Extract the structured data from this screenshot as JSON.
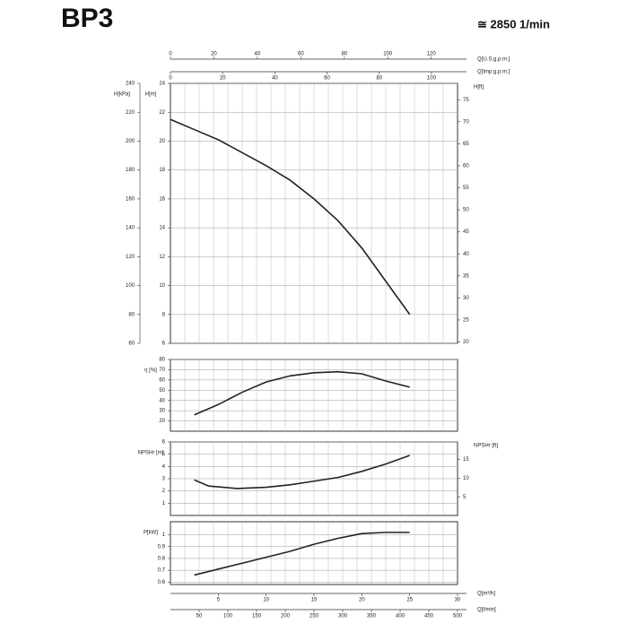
{
  "title": "BP3",
  "speed": "≅ 2850 1/min",
  "chart_data": [
    {
      "type": "line",
      "color": "#222",
      "grid": true,
      "xlim": [
        0,
        30
      ],
      "x": [
        0,
        2.5,
        5,
        7.5,
        10,
        12.5,
        15,
        17.5,
        20,
        22.5,
        25
      ],
      "values": [
        21.5,
        20.8,
        20.1,
        19.2,
        18.3,
        17.3,
        16.0,
        14.5,
        12.6,
        10.3,
        8.0
      ],
      "axes": [
        {
          "label": "H[m]",
          "position": "left",
          "lim": [
            6,
            24
          ],
          "ticks": [
            6,
            8,
            10,
            12,
            14,
            16,
            18,
            20,
            22,
            24
          ]
        },
        {
          "label": "H[kPa]",
          "position": "left-outer",
          "lim": [
            60,
            240
          ],
          "ticks": [
            60,
            80,
            100,
            120,
            140,
            160,
            180,
            200,
            220,
            240
          ]
        },
        {
          "label": "H[ft]",
          "position": "right",
          "lim": [
            19.7,
            78.7
          ],
          "ticks": [
            20,
            25,
            30,
            35,
            40,
            45,
            50,
            55,
            60,
            65,
            70,
            75
          ]
        }
      ],
      "top_axes": [
        {
          "label": "Q[U.S.g.p.m.]",
          "lim": [
            0,
            132.1
          ],
          "ticks": [
            0,
            20,
            40,
            60,
            80,
            100,
            120
          ]
        },
        {
          "label": "Q[Imp.g.p.m.]",
          "lim": [
            0,
            110
          ],
          "ticks": [
            0,
            20,
            40,
            60,
            80,
            100
          ]
        }
      ]
    },
    {
      "type": "line",
      "color": "#222",
      "grid": true,
      "xlim": [
        0,
        30
      ],
      "x": [
        2.5,
        5,
        7.5,
        10,
        12.5,
        15,
        17.5,
        20,
        22.5,
        25
      ],
      "values": [
        26,
        36,
        48,
        58,
        64,
        67,
        68,
        66,
        59,
        53
      ],
      "axes": [
        {
          "label": "η [%]",
          "position": "left",
          "lim": [
            10,
            80
          ],
          "ticks": [
            20,
            30,
            40,
            50,
            60,
            70,
            80
          ]
        }
      ]
    },
    {
      "type": "line",
      "color": "#222",
      "grid": true,
      "xlim": [
        0,
        30
      ],
      "x": [
        2.5,
        4,
        7,
        10,
        12.5,
        15,
        17.5,
        20,
        22.5,
        25
      ],
      "values": [
        2.9,
        2.4,
        2.2,
        2.3,
        2.5,
        2.8,
        3.1,
        3.6,
        4.2,
        4.9
      ],
      "axes": [
        {
          "label": "NPSHr [m]",
          "position": "left",
          "lim": [
            0,
            6
          ],
          "ticks": [
            1,
            2,
            3,
            4,
            5,
            6
          ]
        },
        {
          "label": "NPSHr [ft]",
          "position": "right",
          "lim": [
            0,
            19.7
          ],
          "ticks": [
            5,
            10,
            15
          ]
        }
      ]
    },
    {
      "type": "line",
      "color": "#222",
      "grid": true,
      "xlim": [
        0,
        30
      ],
      "x": [
        2.5,
        5,
        7.5,
        10,
        12.5,
        15,
        17.5,
        20,
        22.5,
        25
      ],
      "values": [
        0.66,
        0.71,
        0.76,
        0.81,
        0.86,
        0.92,
        0.97,
        1.01,
        1.02,
        1.02
      ],
      "axes": [
        {
          "label": "P[kW]",
          "position": "left",
          "lim": [
            0.58,
            1.11
          ],
          "ticks": [
            0.6,
            0.7,
            0.8,
            0.9,
            1
          ]
        }
      ],
      "bottom_axes": [
        {
          "label": "Q[m³/h]",
          "lim": [
            0,
            30
          ],
          "ticks": [
            5,
            10,
            15,
            20,
            25,
            30
          ]
        },
        {
          "label": "Q[l/min]",
          "lim": [
            0,
            500
          ],
          "ticks": [
            50,
            100,
            150,
            200,
            250,
            300,
            350,
            400,
            450,
            500
          ]
        }
      ]
    }
  ]
}
